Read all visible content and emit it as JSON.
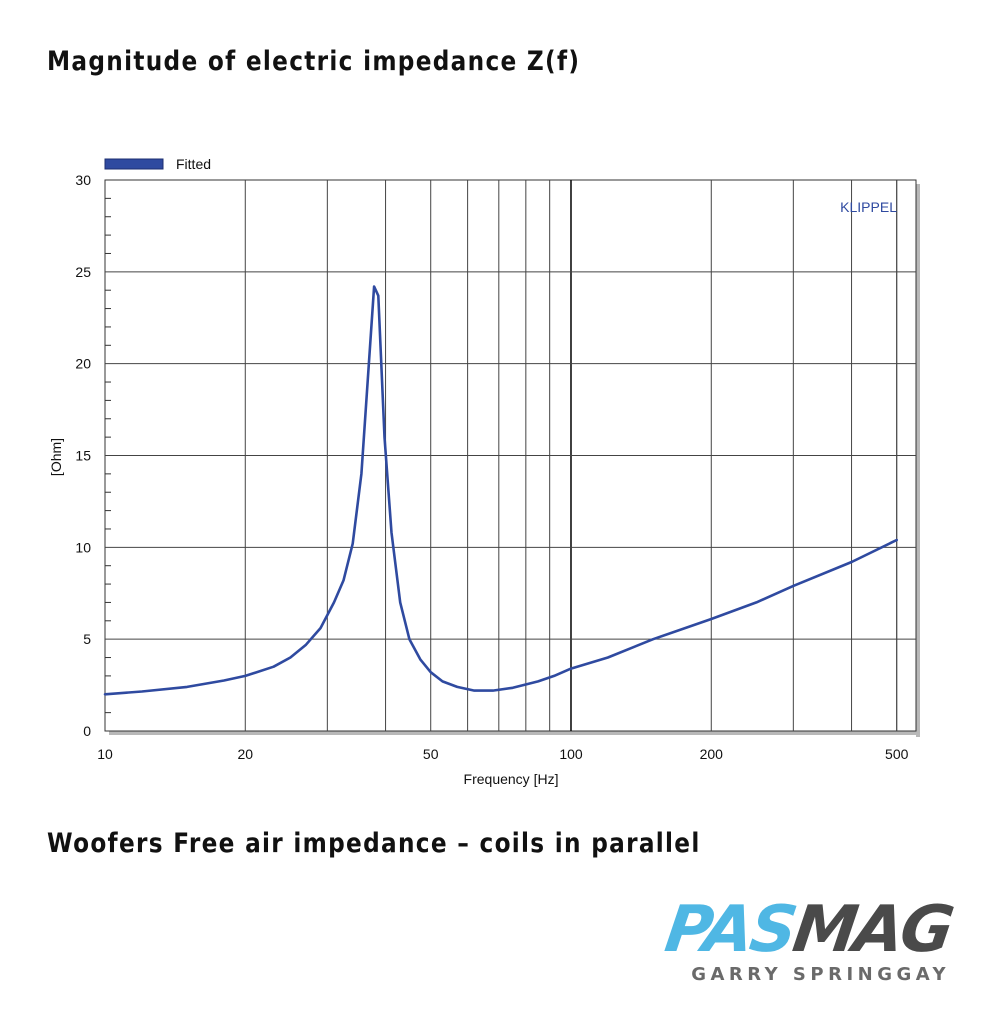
{
  "header": {
    "title": "Magnitude of electric impedance Z(f)"
  },
  "footer": {
    "caption": "Woofers Free air impedance – coils in parallel"
  },
  "logo": {
    "brand_a": "PAS",
    "brand_b": "MAG",
    "author": "GARRY SPRINGGAY",
    "color_a": "#4fb7e4",
    "color_b": "#4a4a4a"
  },
  "chart_data": {
    "type": "line",
    "xlabel": "Frequency [Hz]",
    "ylabel": "[Ohm]",
    "xscale": "log",
    "xlim": [
      10,
      550
    ],
    "ylim": [
      0,
      30
    ],
    "x_ticks": [
      10,
      20,
      50,
      100,
      200,
      500
    ],
    "x_tick_labels": [
      "10",
      "20",
      "50",
      "100",
      "200",
      "500"
    ],
    "y_ticks": [
      0,
      5,
      10,
      15,
      20,
      25,
      30
    ],
    "y_tick_labels": [
      "0",
      "5",
      "10",
      "15",
      "20",
      "25",
      "30"
    ],
    "grid": true,
    "legend": "top-left",
    "watermark": "KLIPPEL",
    "series": [
      {
        "name": "Fitted",
        "color": "#2f4aa0",
        "x": [
          10,
          12,
          15,
          18,
          20,
          23,
          25,
          27,
          29,
          31,
          32.5,
          34,
          35.5,
          36.5,
          37.8,
          38.6,
          39.8,
          41.2,
          43,
          45,
          47.5,
          50,
          53,
          57,
          62,
          68,
          75,
          85,
          92,
          100,
          120,
          150,
          200,
          250,
          300,
          400,
          500
        ],
        "values": [
          2.0,
          2.15,
          2.4,
          2.75,
          3.0,
          3.5,
          4.0,
          4.7,
          5.6,
          7.0,
          8.2,
          10.2,
          14.0,
          18.5,
          24.2,
          23.7,
          16.0,
          10.8,
          7.0,
          5.0,
          3.9,
          3.2,
          2.7,
          2.4,
          2.2,
          2.2,
          2.35,
          2.7,
          3.0,
          3.4,
          4.0,
          5.0,
          6.1,
          7.0,
          7.9,
          9.2,
          10.4
        ]
      }
    ]
  }
}
